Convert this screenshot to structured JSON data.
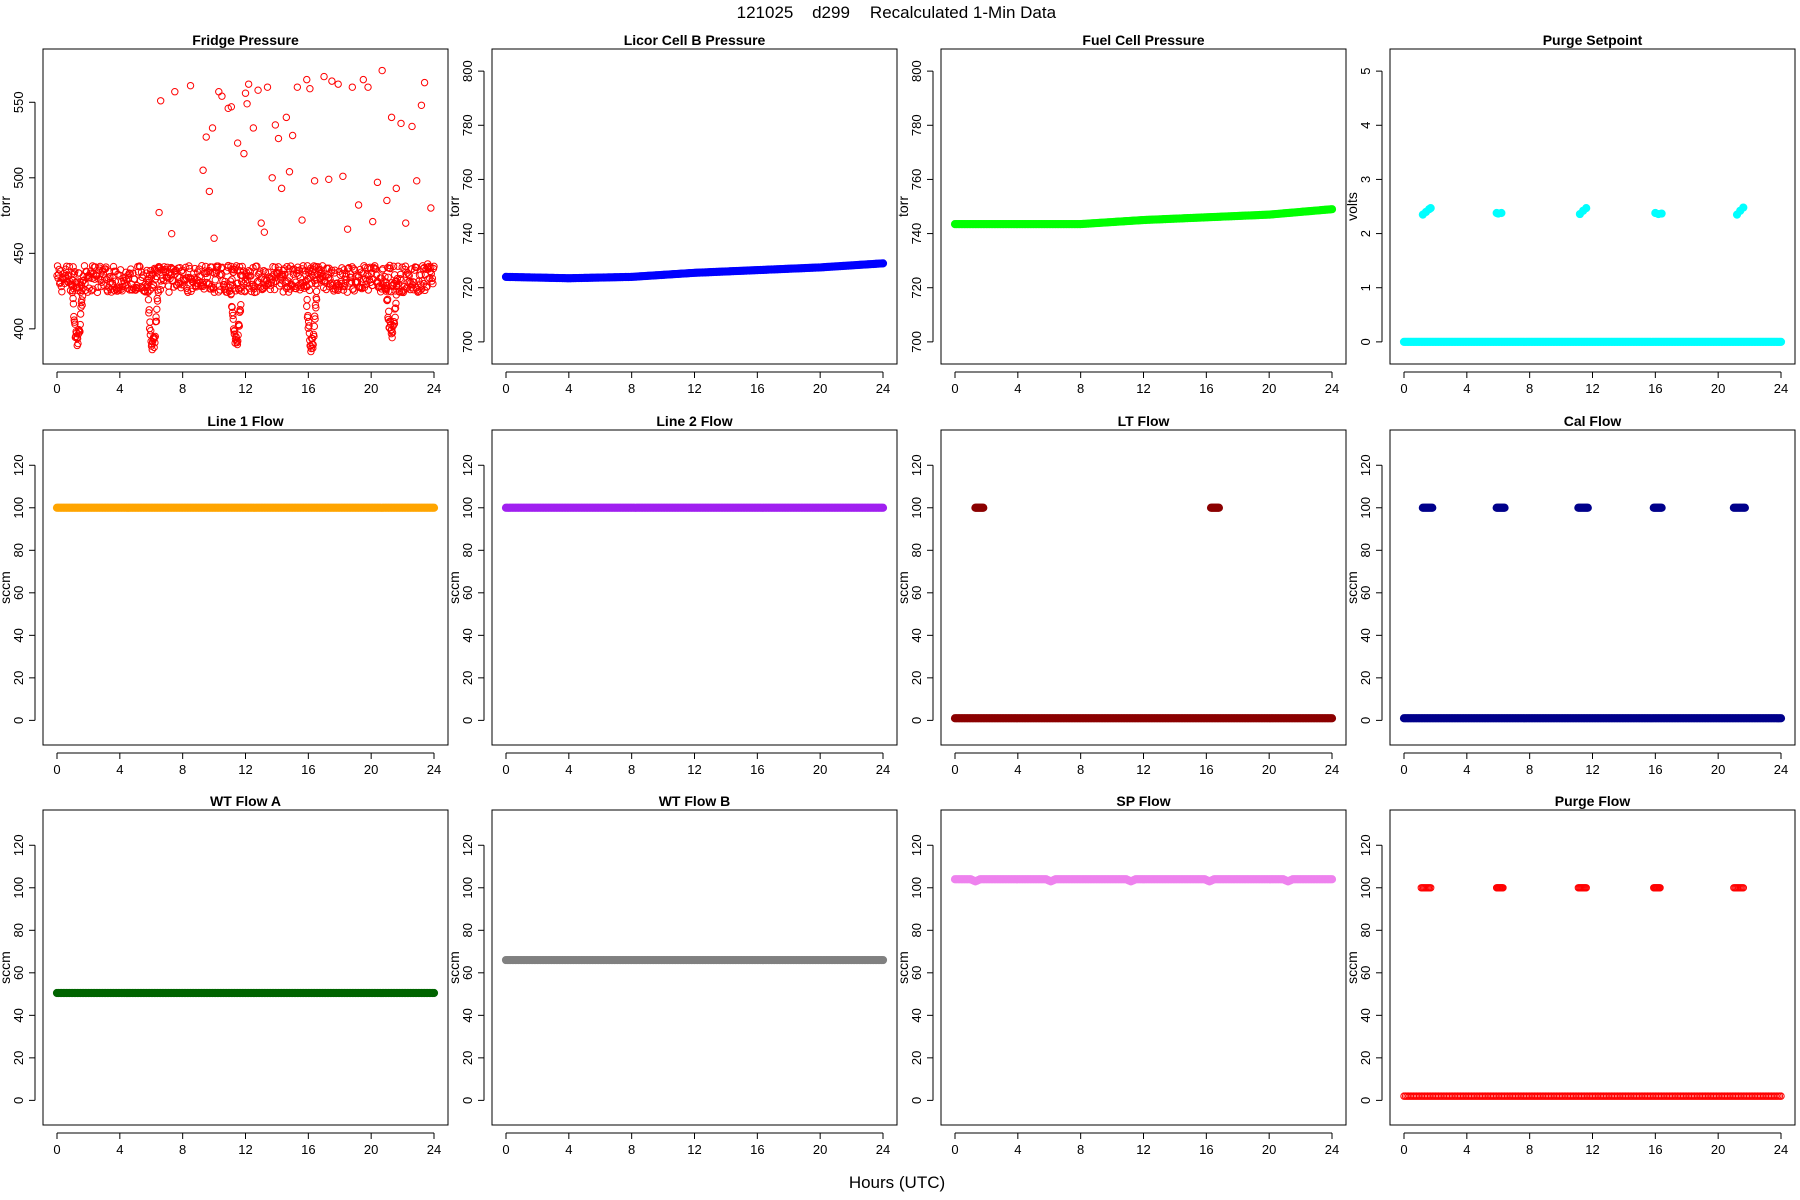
{
  "figure": {
    "title_parts": [
      "121025",
      "d299",
      "Recalculated 1-Min Data"
    ],
    "xlabel": "Hours (UTC)"
  },
  "chart_data": [
    {
      "type": "scatter",
      "title": "Fridge Pressure",
      "ylabel": "torr",
      "color": "#ff0000",
      "hollow": true,
      "xlim": [
        0,
        24
      ],
      "ylim": [
        386,
        576
      ],
      "xticks": [
        0,
        4,
        8,
        12,
        16,
        20,
        24
      ],
      "yticks": [
        400,
        450,
        500,
        550
      ],
      "series": [
        {
          "kind": "band",
          "x": [
            0,
            24
          ],
          "low": 424,
          "high": 442
        },
        {
          "kind": "dip",
          "center": 1.3,
          "min": 393
        },
        {
          "kind": "dip",
          "center": 6.1,
          "min": 389
        },
        {
          "kind": "dip",
          "center": 11.4,
          "min": 392
        },
        {
          "kind": "dip",
          "center": 16.2,
          "min": 389
        },
        {
          "kind": "dip",
          "center": 21.3,
          "min": 398
        },
        {
          "kind": "points",
          "x": [
            6.5,
            6.6,
            7.3,
            7.5,
            8.5,
            9.3,
            9.5,
            9.7,
            9.9,
            10.0,
            10.3,
            10.5,
            10.9,
            11.1,
            11.3,
            11.5,
            11.9,
            12.0,
            12.1,
            12.2,
            12.5,
            12.8,
            13.0,
            13.2,
            13.4,
            13.7,
            13.9,
            14.1,
            14.3,
            14.6,
            14.8,
            15.0,
            15.3,
            15.6,
            15.9,
            16.1,
            16.4,
            16.8,
            17.0,
            17.3,
            17.5,
            17.9,
            18.2,
            18.5,
            18.8,
            19.2,
            19.5,
            19.8,
            20.1,
            20.4,
            20.7,
            21.0,
            21.3,
            21.6,
            21.9,
            22.2,
            22.6,
            22.9,
            23.2,
            23.4,
            23.6,
            23.8
          ],
          "y": [
            477,
            551,
            463,
            557,
            561,
            505,
            527,
            491,
            533,
            460,
            557,
            554,
            546,
            547,
            439,
            523,
            516,
            556,
            549,
            562,
            533,
            558,
            470,
            464,
            560,
            500,
            535,
            526,
            493,
            540,
            504,
            528,
            560,
            472,
            565,
            559,
            498,
            439,
            567,
            499,
            564,
            562,
            501,
            466,
            560,
            482,
            565,
            560,
            471,
            497,
            571,
            485,
            540,
            493,
            536,
            470,
            534,
            498,
            548,
            563,
            443,
            480
          ]
        }
      ]
    },
    {
      "type": "scatter",
      "title": "Licor Cell B Pressure",
      "ylabel": "torr",
      "color": "#0000ff",
      "hollow": false,
      "xlim": [
        0,
        24
      ],
      "ylim": [
        697,
        803
      ],
      "xticks": [
        0,
        4,
        8,
        12,
        16,
        20,
        24
      ],
      "yticks": [
        700,
        720,
        740,
        760,
        780,
        800
      ],
      "series": [
        {
          "kind": "line",
          "x": [
            0,
            4,
            8,
            12,
            16,
            20,
            24
          ],
          "y": [
            724,
            723.5,
            724,
            725.5,
            726.5,
            727.5,
            729
          ]
        }
      ]
    },
    {
      "type": "scatter",
      "title": "Fuel Cell Pressure",
      "ylabel": "torr",
      "color": "#00ff00",
      "hollow": false,
      "xlim": [
        0,
        24
      ],
      "ylim": [
        697,
        803
      ],
      "xticks": [
        0,
        4,
        8,
        12,
        16,
        20,
        24
      ],
      "yticks": [
        700,
        720,
        740,
        760,
        780,
        800
      ],
      "series": [
        {
          "kind": "line",
          "x": [
            0,
            4,
            8,
            12,
            16,
            20,
            24
          ],
          "y": [
            743.5,
            743.5,
            743.5,
            745,
            746,
            747,
            749
          ]
        }
      ]
    },
    {
      "type": "scatter",
      "title": "Purge Setpoint",
      "ylabel": "volts",
      "color": "#00ffff",
      "hollow": false,
      "xlim": [
        0,
        24
      ],
      "ylim": [
        -0.15,
        5.15
      ],
      "xticks": [
        0,
        4,
        8,
        12,
        16,
        20,
        24
      ],
      "yticks": [
        0,
        1,
        2,
        3,
        4,
        5
      ],
      "series": [
        {
          "kind": "line",
          "x": [
            0,
            24
          ],
          "y": [
            0,
            0
          ]
        },
        {
          "kind": "points",
          "x": [
            1.2,
            1.4,
            1.6,
            1.7,
            5.9,
            6.0,
            6.2,
            11.2,
            11.4,
            11.6,
            16.0,
            16.2,
            16.4,
            21.2,
            21.4,
            21.6
          ],
          "y": [
            2.35,
            2.4,
            2.45,
            2.47,
            2.38,
            2.37,
            2.38,
            2.36,
            2.42,
            2.47,
            2.38,
            2.36,
            2.37,
            2.35,
            2.42,
            2.48
          ]
        }
      ]
    },
    {
      "type": "scatter",
      "title": "Line 1 Flow",
      "ylabel": "sccm",
      "color": "#ffa500",
      "hollow": false,
      "xlim": [
        0,
        24
      ],
      "ylim": [
        -5,
        130
      ],
      "xticks": [
        0,
        4,
        8,
        12,
        16,
        20,
        24
      ],
      "yticks": [
        0,
        20,
        40,
        60,
        80,
        100,
        120
      ],
      "series": [
        {
          "kind": "line",
          "x": [
            0,
            24
          ],
          "y": [
            100,
            100
          ]
        }
      ]
    },
    {
      "type": "scatter",
      "title": "Line 2 Flow",
      "ylabel": "sccm",
      "color": "#a020f0",
      "hollow": false,
      "xlim": [
        0,
        24
      ],
      "ylim": [
        -5,
        130
      ],
      "xticks": [
        0,
        4,
        8,
        12,
        16,
        20,
        24
      ],
      "yticks": [
        0,
        20,
        40,
        60,
        80,
        100,
        120
      ],
      "series": [
        {
          "kind": "line",
          "x": [
            0,
            24
          ],
          "y": [
            100,
            100
          ]
        }
      ]
    },
    {
      "type": "scatter",
      "title": "LT Flow",
      "ylabel": "sccm",
      "color": "#8b0000",
      "hollow": false,
      "xlim": [
        0,
        24
      ],
      "ylim": [
        -5,
        130
      ],
      "xticks": [
        0,
        4,
        8,
        12,
        16,
        20,
        24
      ],
      "yticks": [
        0,
        20,
        40,
        60,
        80,
        100,
        120
      ],
      "series": [
        {
          "kind": "line",
          "x": [
            0,
            24
          ],
          "y": [
            1,
            1
          ]
        },
        {
          "kind": "segment",
          "x": [
            1.3,
            1.8
          ],
          "y": 100
        },
        {
          "kind": "segment",
          "x": [
            16.3,
            16.8
          ],
          "y": 100
        }
      ]
    },
    {
      "type": "scatter",
      "title": "Cal Flow",
      "ylabel": "sccm",
      "color": "#00008b",
      "hollow": false,
      "xlim": [
        0,
        24
      ],
      "ylim": [
        -5,
        130
      ],
      "xticks": [
        0,
        4,
        8,
        12,
        16,
        20,
        24
      ],
      "yticks": [
        0,
        20,
        40,
        60,
        80,
        100,
        120
      ],
      "series": [
        {
          "kind": "line",
          "x": [
            0,
            24
          ],
          "y": [
            1,
            1
          ]
        },
        {
          "kind": "segment",
          "x": [
            1.2,
            1.8
          ],
          "y": 100
        },
        {
          "kind": "segment",
          "x": [
            5.9,
            6.4
          ],
          "y": 100
        },
        {
          "kind": "segment",
          "x": [
            11.1,
            11.7
          ],
          "y": 100
        },
        {
          "kind": "segment",
          "x": [
            15.9,
            16.4
          ],
          "y": 100
        },
        {
          "kind": "segment",
          "x": [
            21.0,
            21.7
          ],
          "y": 100
        }
      ]
    },
    {
      "type": "scatter",
      "title": "WT Flow A",
      "ylabel": "sccm",
      "color": "#006400",
      "hollow": false,
      "xlim": [
        0,
        24
      ],
      "ylim": [
        -5,
        130
      ],
      "xticks": [
        0,
        4,
        8,
        12,
        16,
        20,
        24
      ],
      "yticks": [
        0,
        20,
        40,
        60,
        80,
        100,
        120
      ],
      "series": [
        {
          "kind": "line",
          "x": [
            0,
            24
          ],
          "y": [
            50.5,
            50.5
          ]
        }
      ]
    },
    {
      "type": "scatter",
      "title": "WT Flow B",
      "ylabel": "sccm",
      "color": "#808080",
      "hollow": false,
      "xlim": [
        0,
        24
      ],
      "ylim": [
        -5,
        130
      ],
      "xticks": [
        0,
        4,
        8,
        12,
        16,
        20,
        24
      ],
      "yticks": [
        0,
        20,
        40,
        60,
        80,
        100,
        120
      ],
      "series": [
        {
          "kind": "line",
          "x": [
            0,
            24
          ],
          "y": [
            66,
            66
          ]
        }
      ]
    },
    {
      "type": "scatter",
      "title": "SP Flow",
      "ylabel": "sccm",
      "color": "#ee82ee",
      "hollow": false,
      "xlim": [
        0,
        24
      ],
      "ylim": [
        -5,
        130
      ],
      "xticks": [
        0,
        4,
        8,
        12,
        16,
        20,
        24
      ],
      "yticks": [
        0,
        20,
        40,
        60,
        80,
        100,
        120
      ],
      "series": [
        {
          "kind": "line",
          "x": [
            0,
            1.0,
            1.3,
            1.6,
            5.8,
            6.1,
            6.4,
            10.9,
            11.2,
            11.5,
            15.9,
            16.2,
            16.5,
            20.9,
            21.2,
            21.5,
            24
          ],
          "y": [
            104,
            104,
            103,
            104,
            104,
            103,
            104,
            104,
            103,
            104,
            104,
            103,
            104,
            104,
            103,
            104,
            104
          ]
        }
      ]
    },
    {
      "type": "scatter",
      "title": "Purge Flow",
      "ylabel": "sccm",
      "color": "#ff0000",
      "hollow": true,
      "xlim": [
        0,
        24
      ],
      "ylim": [
        -5,
        130
      ],
      "xticks": [
        0,
        4,
        8,
        12,
        16,
        20,
        24
      ],
      "yticks": [
        0,
        20,
        40,
        60,
        80,
        100,
        120
      ],
      "series": [
        {
          "kind": "line",
          "x": [
            0,
            24
          ],
          "y": [
            2,
            2
          ]
        },
        {
          "kind": "segment",
          "x": [
            1.1,
            1.7
          ],
          "y": 100
        },
        {
          "kind": "segment",
          "x": [
            5.9,
            6.3
          ],
          "y": 100
        },
        {
          "kind": "segment",
          "x": [
            11.1,
            11.6
          ],
          "y": 100
        },
        {
          "kind": "segment",
          "x": [
            15.9,
            16.3
          ],
          "y": 100
        },
        {
          "kind": "segment",
          "x": [
            21.0,
            21.6
          ],
          "y": 100
        }
      ]
    }
  ]
}
